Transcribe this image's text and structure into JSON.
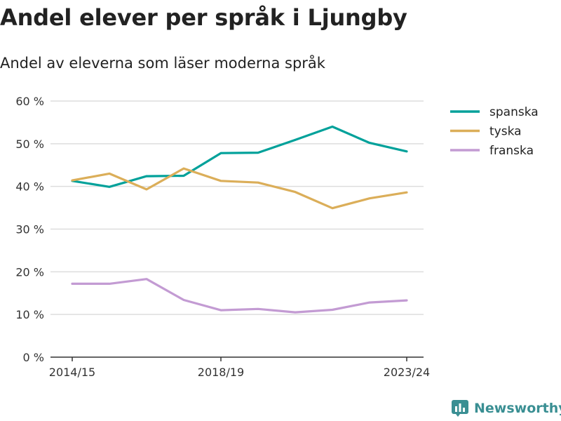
{
  "title": "Andel elever per språk i Ljungby",
  "subtitle": "Andel av eleverna som läser moderna språk",
  "brand": {
    "name": "Newsworthy",
    "icon": "bar-chart-logo-icon",
    "color": "#3a8f93"
  },
  "chart_data": {
    "type": "line",
    "categories": [
      "2014/15",
      "2015/16",
      "2016/17",
      "2017/18",
      "2018/19",
      "2019/20",
      "2020/21",
      "2021/22",
      "2022/23",
      "2023/24"
    ],
    "x_tick_labels": [
      "2014/15",
      "2018/19",
      "2023/24"
    ],
    "y_ticks": [
      "0 %",
      "10 %",
      "20 %",
      "30 %",
      "40 %",
      "50 %",
      "60 %"
    ],
    "ylim": [
      0,
      60
    ],
    "grid": true,
    "legend": "right",
    "series": [
      {
        "name": "spanska",
        "color": "#00a19a",
        "values": [
          41.3,
          39.9,
          42.4,
          42.5,
          47.8,
          47.9,
          50.9,
          54.0,
          50.2,
          48.2
        ]
      },
      {
        "name": "tyska",
        "color": "#dbae59",
        "values": [
          41.4,
          43.0,
          39.3,
          44.2,
          41.3,
          40.9,
          38.7,
          34.9,
          37.2,
          38.6
        ]
      },
      {
        "name": "franska",
        "color": "#c39bd3",
        "values": [
          17.2,
          17.2,
          18.3,
          13.4,
          11.0,
          11.3,
          10.5,
          11.1,
          12.8,
          13.3
        ]
      }
    ]
  }
}
